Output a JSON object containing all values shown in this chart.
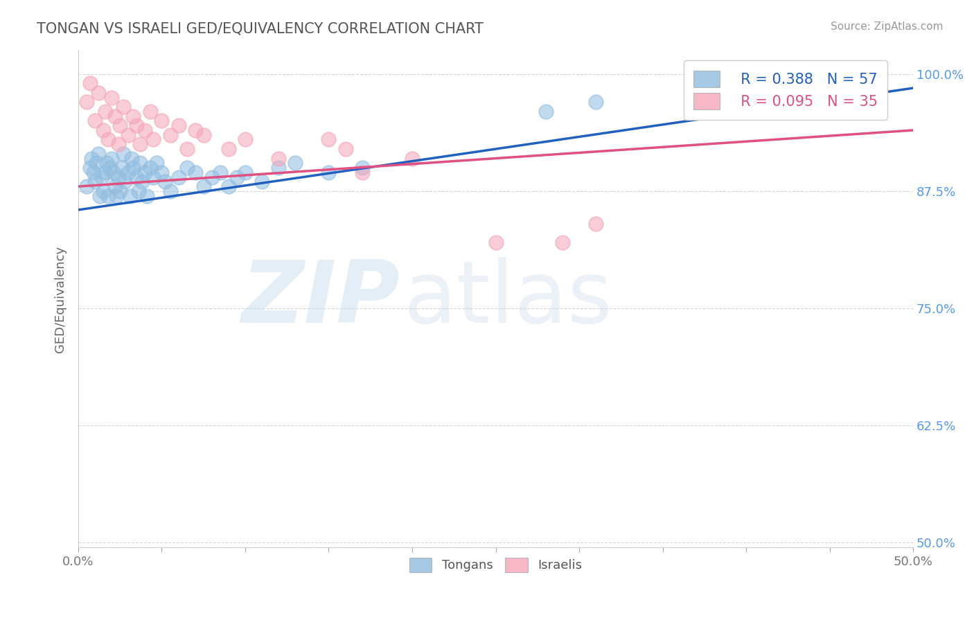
{
  "title": "TONGAN VS ISRAELI GED/EQUIVALENCY CORRELATION CHART",
  "source": "Source: ZipAtlas.com",
  "ylabel": "GED/Equivalency",
  "xlim": [
    0.0,
    0.5
  ],
  "ylim": [
    0.495,
    1.025
  ],
  "xticks": [
    0.0,
    0.05,
    0.1,
    0.15,
    0.2,
    0.25,
    0.3,
    0.35,
    0.4,
    0.45,
    0.5
  ],
  "xticklabels_show": [
    "0.0%",
    "",
    "",
    "",
    "",
    "",
    "",
    "",
    "",
    "",
    "50.0%"
  ],
  "yticks": [
    0.5,
    0.625,
    0.75,
    0.875,
    1.0
  ],
  "yticklabels": [
    "50.0%",
    "62.5%",
    "75.0%",
    "87.5%",
    "100.0%"
  ],
  "legend_r_tongan": "R = 0.388",
  "legend_n_tongan": "N = 57",
  "legend_r_israeli": "R = 0.095",
  "legend_n_israeli": "N = 35",
  "tongan_color": "#90bde0",
  "israeli_color": "#f4a5b8",
  "tongan_line_color": "#2060c0",
  "israeli_line_color": "#e05080",
  "background_color": "#ffffff",
  "watermark_zip": "ZIP",
  "watermark_atlas": "atlas",
  "tongan_x": [
    0.005,
    0.007,
    0.008,
    0.009,
    0.01,
    0.011,
    0.012,
    0.013,
    0.014,
    0.015,
    0.016,
    0.017,
    0.018,
    0.019,
    0.02,
    0.021,
    0.022,
    0.023,
    0.024,
    0.025,
    0.026,
    0.027,
    0.028,
    0.03,
    0.031,
    0.032,
    0.033,
    0.035,
    0.036,
    0.037,
    0.038,
    0.04,
    0.041,
    0.043,
    0.045,
    0.047,
    0.05,
    0.052,
    0.055,
    0.06,
    0.065,
    0.07,
    0.075,
    0.08,
    0.085,
    0.09,
    0.095,
    0.1,
    0.11,
    0.12,
    0.13,
    0.15,
    0.17,
    0.28,
    0.31,
    0.44,
    0.46
  ],
  "tongan_y": [
    0.88,
    0.9,
    0.91,
    0.895,
    0.885,
    0.905,
    0.915,
    0.87,
    0.89,
    0.875,
    0.895,
    0.905,
    0.87,
    0.9,
    0.91,
    0.895,
    0.88,
    0.87,
    0.89,
    0.875,
    0.9,
    0.915,
    0.885,
    0.895,
    0.87,
    0.91,
    0.9,
    0.89,
    0.875,
    0.905,
    0.885,
    0.895,
    0.87,
    0.9,
    0.89,
    0.905,
    0.895,
    0.885,
    0.875,
    0.89,
    0.9,
    0.895,
    0.88,
    0.89,
    0.895,
    0.88,
    0.89,
    0.895,
    0.885,
    0.9,
    0.905,
    0.895,
    0.9,
    0.96,
    0.97,
    0.975,
    0.98
  ],
  "israeli_x": [
    0.005,
    0.007,
    0.01,
    0.012,
    0.015,
    0.016,
    0.018,
    0.02,
    0.022,
    0.024,
    0.025,
    0.027,
    0.03,
    0.033,
    0.035,
    0.037,
    0.04,
    0.043,
    0.045,
    0.05,
    0.055,
    0.06,
    0.065,
    0.07,
    0.075,
    0.09,
    0.1,
    0.12,
    0.15,
    0.16,
    0.17,
    0.2,
    0.25,
    0.29,
    0.31
  ],
  "israeli_y": [
    0.97,
    0.99,
    0.95,
    0.98,
    0.94,
    0.96,
    0.93,
    0.975,
    0.955,
    0.925,
    0.945,
    0.965,
    0.935,
    0.955,
    0.945,
    0.925,
    0.94,
    0.96,
    0.93,
    0.95,
    0.935,
    0.945,
    0.92,
    0.94,
    0.935,
    0.92,
    0.93,
    0.91,
    0.93,
    0.92,
    0.895,
    0.91,
    0.82,
    0.82,
    0.84
  ],
  "tline_tongan_x0": 0.0,
  "tline_tongan_y0": 0.855,
  "tline_tongan_x1": 0.5,
  "tline_tongan_y1": 0.985,
  "tline_israeli_x0": 0.0,
  "tline_israeli_y0": 0.88,
  "tline_israeli_x1": 0.5,
  "tline_israeli_y1": 0.94
}
